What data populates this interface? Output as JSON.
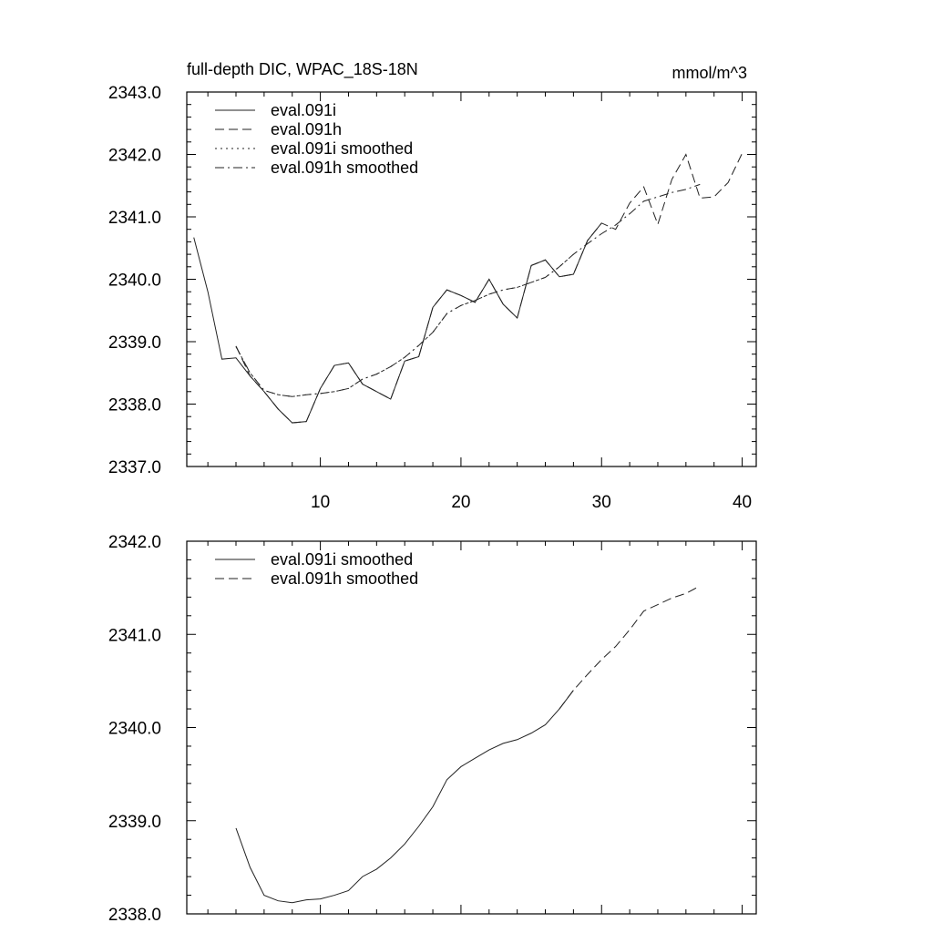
{
  "figure": {
    "title_left": "full-depth DIC, WPAC_18S-18N",
    "title_right": "mmol/m^3"
  },
  "chart_data": [
    {
      "type": "line",
      "xlim": [
        0.5,
        41.0
      ],
      "ylim": [
        2337.0,
        2343.0
      ],
      "x_ticks": [
        10,
        20,
        30,
        40
      ],
      "x_tick_labels": [
        "10",
        "20",
        "30",
        "40"
      ],
      "y_ticks": [
        2337.0,
        2338.0,
        2339.0,
        2340.0,
        2341.0,
        2342.0,
        2343.0
      ],
      "y_tick_labels": [
        "2337.0",
        "2338.0",
        "2339.0",
        "2340.0",
        "2341.0",
        "2342.0",
        "2343.0"
      ],
      "legend": [
        {
          "label": "eval.091i",
          "dash": "solid"
        },
        {
          "label": "eval.091h",
          "dash": "dashed"
        },
        {
          "label": "eval.091i smoothed",
          "dash": "dotted"
        },
        {
          "label": "eval.091h smoothed",
          "dash": "dashdot"
        }
      ],
      "series": [
        {
          "name": "eval.091i",
          "dash": "solid",
          "x": [
            1,
            2,
            3,
            4,
            5,
            6,
            7,
            8,
            9,
            10,
            11,
            12,
            13,
            14,
            15,
            16,
            17,
            18,
            19,
            20,
            21,
            22,
            23,
            24,
            25,
            26,
            27,
            28,
            29,
            30
          ],
          "y": [
            2340.67,
            2339.8,
            2338.72,
            2338.74,
            2338.45,
            2338.2,
            2337.92,
            2337.7,
            2337.72,
            2338.25,
            2338.62,
            2338.66,
            2338.32,
            2338.2,
            2338.08,
            2338.69,
            2338.76,
            2339.55,
            2339.83,
            2339.74,
            2339.63,
            2340.0,
            2339.6,
            2339.38,
            2340.22,
            2340.31,
            2340.04,
            2340.08,
            2340.62,
            2340.9
          ]
        },
        {
          "name": "eval.091h",
          "dash": "dashed",
          "x": [
            4,
            5,
            6,
            7,
            8,
            9,
            10,
            11,
            12,
            13,
            14,
            15,
            16,
            17,
            18,
            19,
            20,
            21,
            22,
            23,
            24,
            25,
            26,
            27,
            28,
            29,
            30,
            31,
            32,
            33,
            34,
            35,
            36,
            37,
            38,
            39,
            40
          ],
          "y": [
            2338.93,
            2338.45,
            2338.2,
            2337.92,
            2337.7,
            2337.72,
            2338.25,
            2338.62,
            2338.66,
            2338.32,
            2338.2,
            2338.08,
            2338.69,
            2338.76,
            2339.55,
            2339.83,
            2339.74,
            2339.63,
            2340.0,
            2339.6,
            2339.38,
            2340.22,
            2340.31,
            2340.04,
            2340.08,
            2340.62,
            2340.9,
            2340.8,
            2341.22,
            2341.48,
            2340.88,
            2341.6,
            2342.0,
            2341.3,
            2341.32,
            2341.55,
            2342.02
          ]
        },
        {
          "name": "eval.091i smoothed",
          "dash": "dotted",
          "x": [
            4,
            5,
            6,
            7,
            8,
            9,
            10,
            11,
            12,
            13,
            14,
            15,
            16,
            17,
            18,
            19,
            20,
            21,
            22,
            23,
            24,
            25,
            26,
            27,
            28
          ],
          "y": [
            2338.92,
            2338.5,
            2338.22,
            2338.15,
            2338.12,
            2338.15,
            2338.17,
            2338.2,
            2338.25,
            2338.4,
            2338.48,
            2338.6,
            2338.75,
            2338.94,
            2339.15,
            2339.45,
            2339.58,
            2339.66,
            2339.76,
            2339.83,
            2339.87,
            2339.95,
            2340.03,
            2340.2,
            2340.4
          ]
        },
        {
          "name": "eval.091h smoothed",
          "dash": "dashdot",
          "x": [
            4,
            5,
            6,
            7,
            8,
            9,
            10,
            11,
            12,
            13,
            14,
            15,
            16,
            17,
            18,
            19,
            20,
            21,
            22,
            23,
            24,
            25,
            26,
            27,
            28,
            29,
            30,
            31,
            32,
            33,
            34,
            35,
            36,
            37
          ],
          "y": [
            2338.92,
            2338.5,
            2338.22,
            2338.15,
            2338.12,
            2338.15,
            2338.17,
            2338.2,
            2338.25,
            2338.4,
            2338.48,
            2338.6,
            2338.75,
            2338.94,
            2339.15,
            2339.45,
            2339.58,
            2339.66,
            2339.76,
            2339.83,
            2339.87,
            2339.95,
            2340.03,
            2340.2,
            2340.4,
            2340.57,
            2340.73,
            2340.87,
            2341.05,
            2341.25,
            2341.32,
            2341.39,
            2341.44,
            2341.52
          ]
        }
      ]
    },
    {
      "type": "line",
      "xlim": [
        0.5,
        41.0
      ],
      "ylim": [
        2338.0,
        2342.0
      ],
      "x_ticks": [
        10,
        20,
        30,
        40
      ],
      "y_ticks": [
        2338.0,
        2339.0,
        2340.0,
        2341.0,
        2342.0
      ],
      "y_tick_labels": [
        "2338.0",
        "2339.0",
        "2340.0",
        "2341.0",
        "2342.0"
      ],
      "legend": [
        {
          "label": "eval.091i smoothed",
          "dash": "solid"
        },
        {
          "label": "eval.091h smoothed",
          "dash": "dashed"
        }
      ],
      "series": [
        {
          "name": "eval.091i smoothed",
          "dash": "solid",
          "x": [
            4,
            5,
            6,
            7,
            8,
            9,
            10,
            11,
            12,
            13,
            14,
            15,
            16,
            17,
            18,
            19,
            20,
            21,
            22,
            23,
            24,
            25,
            26,
            27,
            28
          ],
          "y": [
            2338.92,
            2338.5,
            2338.2,
            2338.14,
            2338.12,
            2338.15,
            2338.16,
            2338.2,
            2338.25,
            2338.4,
            2338.48,
            2338.6,
            2338.75,
            2338.94,
            2339.15,
            2339.44,
            2339.58,
            2339.67,
            2339.76,
            2339.83,
            2339.87,
            2339.94,
            2340.03,
            2340.2,
            2340.4
          ]
        },
        {
          "name": "eval.091h smoothed",
          "dash": "dashed",
          "x": [
            27,
            28,
            29,
            30,
            31,
            32,
            33,
            34,
            35,
            36,
            37
          ],
          "y": [
            2340.2,
            2340.4,
            2340.57,
            2340.73,
            2340.87,
            2341.05,
            2341.25,
            2341.32,
            2341.39,
            2341.44,
            2341.52
          ]
        }
      ]
    }
  ]
}
